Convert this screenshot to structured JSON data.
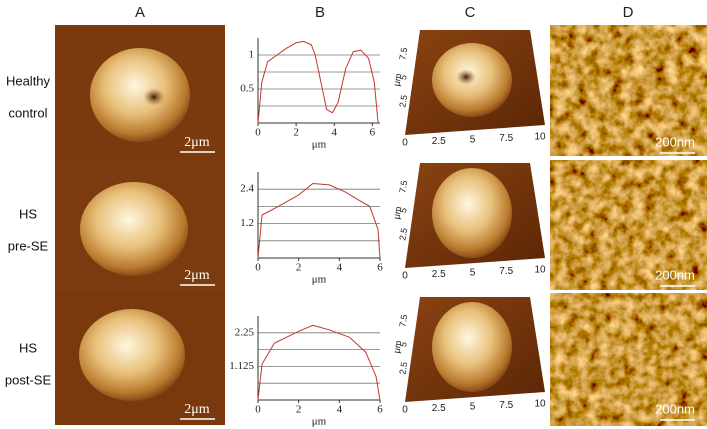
{
  "headers": [
    "A",
    "B",
    "C",
    "D"
  ],
  "rows": [
    {
      "label": [
        "Healthy",
        "control"
      ]
    },
    {
      "label": [
        "HS",
        "pre-SE"
      ]
    },
    {
      "label": [
        "HS",
        "post-SE"
      ]
    }
  ],
  "scale_a": "2μm",
  "scale_d": "200nm",
  "c_axes": {
    "xticks": [
      0,
      2.5,
      5,
      7.5,
      10
    ],
    "yticks": [
      2.5,
      5,
      7.5
    ],
    "unit": "μm"
  },
  "profiles": [
    {
      "type": "line",
      "xlabel": "μm",
      "xlim": [
        0,
        6.4
      ],
      "ylim": [
        0,
        1.25
      ],
      "xticks": [
        0,
        2,
        4,
        6
      ],
      "yticks": [
        0.5,
        1
      ],
      "ygrid": [
        0.25,
        0.5,
        0.75,
        1
      ],
      "color": "#c0392b",
      "x": [
        0,
        0.2,
        0.5,
        1,
        1.5,
        2,
        2.4,
        2.8,
        3.0,
        3.3,
        3.6,
        3.9,
        4.2,
        4.6,
        5.0,
        5.4,
        5.8,
        6.1,
        6.3
      ],
      "values": [
        0,
        0.6,
        0.9,
        1.0,
        1.1,
        1.18,
        1.2,
        1.15,
        1.0,
        0.6,
        0.2,
        0.15,
        0.3,
        0.8,
        1.05,
        1.07,
        0.95,
        0.6,
        0
      ]
    },
    {
      "type": "line",
      "xlabel": "μm",
      "xlim": [
        0,
        6
      ],
      "ylim": [
        0,
        3.0
      ],
      "xticks": [
        0,
        2,
        4,
        6
      ],
      "yticks": [
        1.2,
        2.4
      ],
      "ygrid": [
        0.6,
        1.2,
        1.8,
        2.4
      ],
      "color": "#c0392b",
      "x": [
        0,
        0.2,
        1,
        2,
        2.7,
        3.5,
        4.3,
        5,
        5.5,
        5.9,
        6
      ],
      "values": [
        0,
        1.5,
        1.8,
        2.2,
        2.6,
        2.55,
        2.3,
        2.0,
        1.8,
        1.0,
        0
      ]
    },
    {
      "type": "line",
      "xlabel": "μm",
      "xlim": [
        0,
        6
      ],
      "ylim": [
        0,
        2.8125
      ],
      "xticks": [
        0,
        2,
        4,
        6
      ],
      "yticks": [
        1.125,
        2.25
      ],
      "ygrid": [
        0.5625,
        1.125,
        1.6875,
        2.25
      ],
      "color": "#c0392b",
      "x": [
        0,
        0.2,
        0.8,
        2,
        2.7,
        3.5,
        4.5,
        5.3,
        5.8,
        6
      ],
      "values": [
        0,
        1.2,
        1.9,
        2.3,
        2.5,
        2.35,
        2.1,
        1.6,
        0.8,
        0
      ]
    }
  ]
}
